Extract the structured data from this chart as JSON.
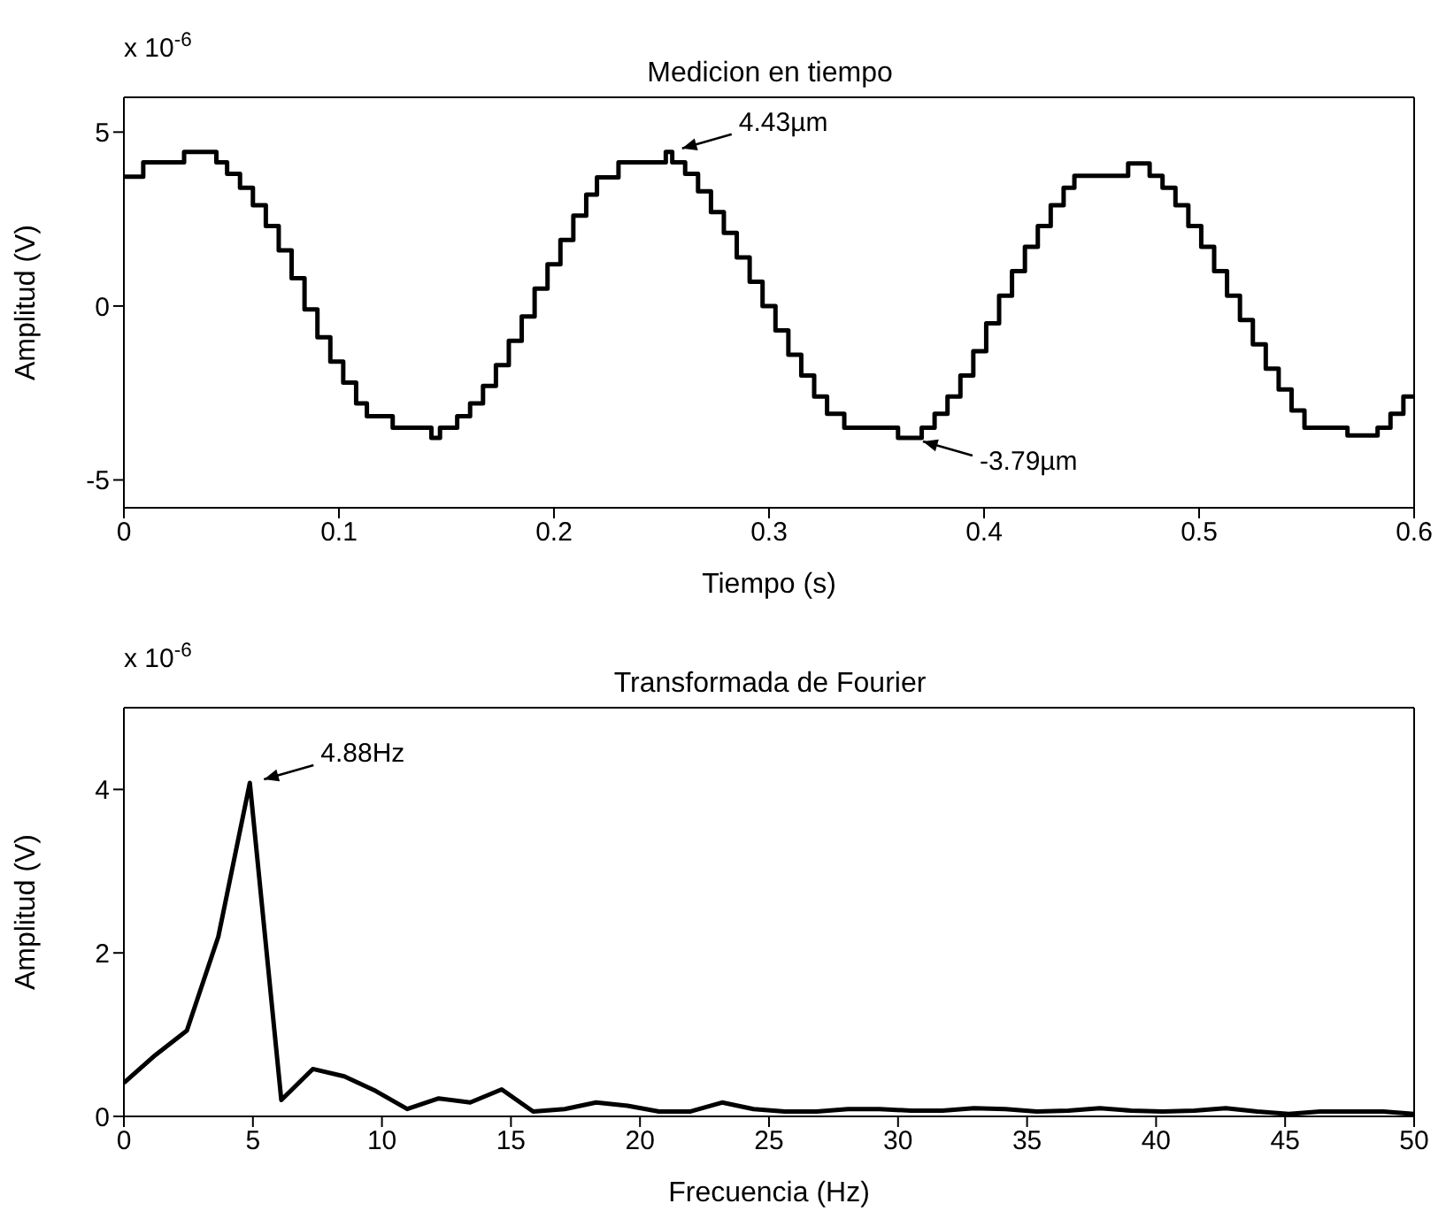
{
  "chart_data": [
    {
      "type": "step",
      "title": "Medicion en tiempo",
      "xlabel": "Tiempo (s)",
      "ylabel": "Amplitud (V)",
      "color": "#000000",
      "x": [
        0,
        0.009,
        0.028,
        0.043,
        0.048,
        0.054,
        0.06,
        0.066,
        0.072,
        0.078,
        0.084,
        0.09,
        0.096,
        0.102,
        0.108,
        0.113,
        0.125,
        0.143,
        0.147,
        0.155,
        0.161,
        0.167,
        0.173,
        0.179,
        0.185,
        0.191,
        0.197,
        0.203,
        0.209,
        0.215,
        0.22,
        0.23,
        0.252,
        0.255,
        0.261,
        0.267,
        0.273,
        0.279,
        0.285,
        0.291,
        0.297,
        0.303,
        0.309,
        0.315,
        0.321,
        0.327,
        0.335,
        0.36,
        0.371,
        0.377,
        0.383,
        0.389,
        0.395,
        0.401,
        0.407,
        0.413,
        0.419,
        0.425,
        0.431,
        0.437,
        0.442,
        0.467,
        0.477,
        0.483,
        0.489,
        0.495,
        0.501,
        0.507,
        0.513,
        0.519,
        0.525,
        0.531,
        0.537,
        0.543,
        0.549,
        0.569,
        0.583,
        0.589,
        0.595,
        0.6
      ],
      "values": [
        3.72,
        4.13,
        4.43,
        4.13,
        3.8,
        3.4,
        2.9,
        2.3,
        1.6,
        0.8,
        -0.1,
        -0.9,
        -1.6,
        -2.2,
        -2.8,
        -3.17,
        -3.5,
        -3.79,
        -3.5,
        -3.17,
        -2.8,
        -2.3,
        -1.7,
        -1,
        -0.3,
        0.5,
        1.2,
        1.9,
        2.6,
        3.2,
        3.7,
        4.13,
        4.43,
        4.13,
        3.8,
        3.3,
        2.7,
        2.1,
        1.4,
        0.7,
        0,
        -0.7,
        -1.4,
        -2,
        -2.6,
        -3.1,
        -3.5,
        -3.79,
        -3.5,
        -3.1,
        -2.6,
        -2,
        -1.3,
        -0.5,
        0.3,
        1,
        1.7,
        2.3,
        2.9,
        3.4,
        3.74,
        4.1,
        3.74,
        3.4,
        2.9,
        2.3,
        1.7,
        1,
        0.3,
        -0.4,
        -1.1,
        -1.8,
        -2.4,
        -3,
        -3.5,
        -3.72,
        -3.5,
        -3.1,
        -2.6,
        -2.6
      ],
      "xlim": [
        0,
        0.6
      ],
      "xticks": [
        0,
        0.1,
        0.2,
        0.3,
        0.4,
        0.5,
        0.6
      ],
      "ylim": [
        -5.8,
        6
      ],
      "yticks": [
        -5,
        0,
        5
      ],
      "annotations": [
        "x 10$^{-6}$",
        {
          "text": "4.43µm",
          "x": 0.253,
          "y": 4.43
        },
        {
          "text": "-3.79µm",
          "x": 0.365,
          "y": -3.79
        }
      ]
    },
    {
      "type": "line",
      "title": "Transformada de Fourier",
      "xlabel": "Frecuencia (Hz)",
      "ylabel": "Amplitud (V)",
      "color": "#000000",
      "x": [
        0,
        1.22,
        2.44,
        3.66,
        4.88,
        6.1,
        7.32,
        8.54,
        9.76,
        10.98,
        12.2,
        13.42,
        14.64,
        15.86,
        17.08,
        18.3,
        19.52,
        20.74,
        21.96,
        23.18,
        24.4,
        25.62,
        26.84,
        28.06,
        29.28,
        30.5,
        31.72,
        32.94,
        34.16,
        35.38,
        36.6,
        37.82,
        39.04,
        40.26,
        41.48,
        42.7,
        43.92,
        45.14,
        46.36,
        47.58,
        48.8,
        50
      ],
      "values": [
        0.41,
        0.75,
        1.05,
        2.2,
        4.08,
        0.2,
        0.58,
        0.49,
        0.31,
        0.09,
        0.22,
        0.17,
        0.33,
        0.06,
        0.09,
        0.17,
        0.13,
        0.06,
        0.06,
        0.17,
        0.09,
        0.06,
        0.06,
        0.09,
        0.09,
        0.07,
        0.07,
        0.1,
        0.09,
        0.06,
        0.07,
        0.1,
        0.07,
        0.06,
        0.07,
        0.1,
        0.06,
        0.03,
        0.06,
        0.06,
        0.06,
        0.03
      ],
      "xlim": [
        0,
        50
      ],
      "xticks": [
        0,
        5,
        10,
        15,
        20,
        25,
        30,
        35,
        40,
        45,
        50
      ],
      "ylim": [
        0,
        5
      ],
      "yticks": [
        0,
        2,
        4
      ],
      "annotations": [
        "x 10$^{-6}$",
        {
          "text": "4.88Hz",
          "x": 4.88,
          "y": 4.08
        }
      ]
    }
  ]
}
